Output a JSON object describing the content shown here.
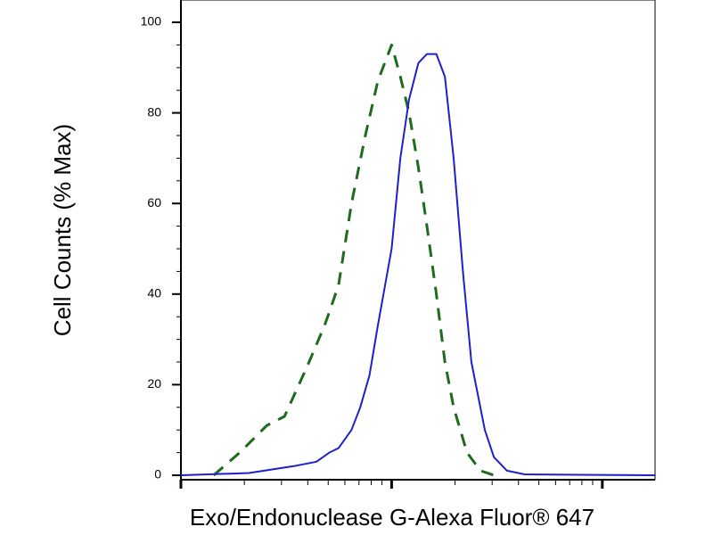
{
  "chart_data": {
    "type": "line",
    "x_label": "Exo/Endonuclease G-Alexa Fluor® 647",
    "y_label": "Cell Counts (% Max)",
    "xscale": "log",
    "xlim": [
      1,
      178
    ],
    "xticks": [
      1,
      10,
      100
    ],
    "ylim": [
      0,
      100
    ],
    "yticks": [
      0,
      20,
      40,
      60,
      80,
      100
    ],
    "series": [
      {
        "color": "#1e6b1e",
        "dashed": true,
        "x": [
          1.43,
          1.9,
          2.56,
          3.1,
          3.97,
          4.8,
          5.06,
          5.6,
          6.45,
          7.5,
          8.6,
          10,
          11,
          12.1,
          13.4,
          14.7,
          16.3,
          17.9,
          19.7,
          22.8,
          26.4,
          30.6
        ],
        "values": [
          0,
          5,
          11,
          13,
          24,
          33,
          36,
          42,
          60,
          75,
          87,
          95,
          88,
          80,
          68,
          55,
          40,
          25,
          15,
          5,
          1,
          0
        ]
      },
      {
        "color": "#1f1fcc",
        "dashed": false,
        "x": [
          1,
          2.1,
          3.43,
          4.4,
          5.06,
          5.6,
          6.45,
          7.1,
          7.85,
          8.6,
          10,
          11,
          12.1,
          13.4,
          14.7,
          16.3,
          17.9,
          19.7,
          21.8,
          23.9,
          27.7,
          30.6,
          35.3,
          42.8,
          177
        ],
        "values": [
          0,
          0.5,
          2,
          3,
          5,
          6,
          10,
          15,
          22,
          33,
          50,
          70,
          83,
          91,
          93,
          93,
          88,
          70,
          45,
          25,
          10,
          4,
          1,
          0.2,
          0
        ]
      }
    ]
  }
}
